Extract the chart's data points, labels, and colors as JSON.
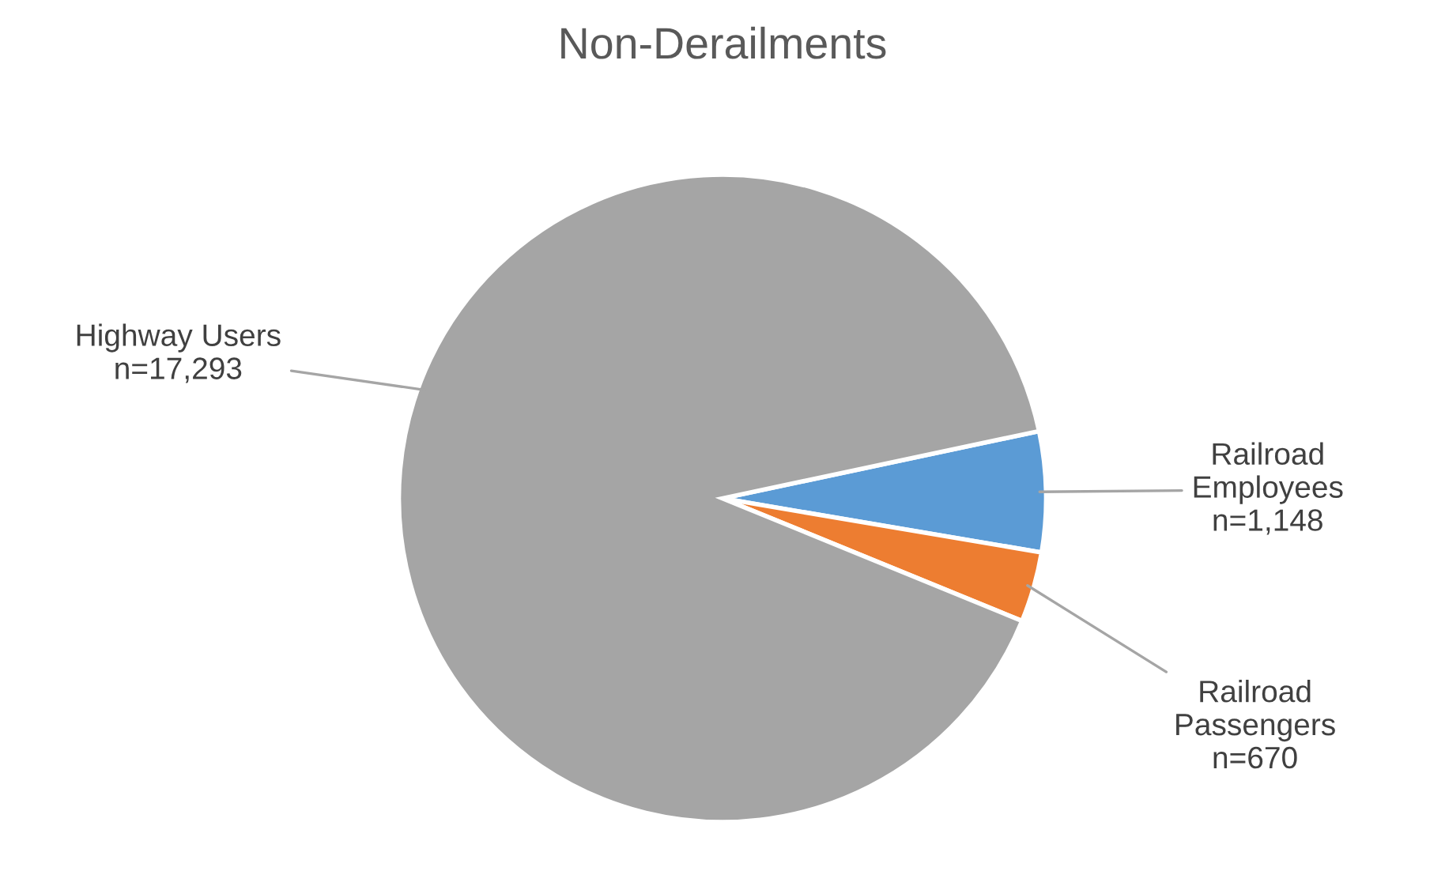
{
  "chart_data": {
    "type": "pie",
    "title": "Non-Derailments",
    "categories": [
      "Railroad Employees",
      "Railroad Passengers",
      "Highway Users"
    ],
    "values": [
      1148,
      670,
      17293
    ],
    "value_labels": [
      "n=1,148",
      "n=670",
      "n=17,293"
    ],
    "colors": [
      "#5b9bd5",
      "#ed7d31",
      "#a5a5a5"
    ],
    "legend": false
  }
}
